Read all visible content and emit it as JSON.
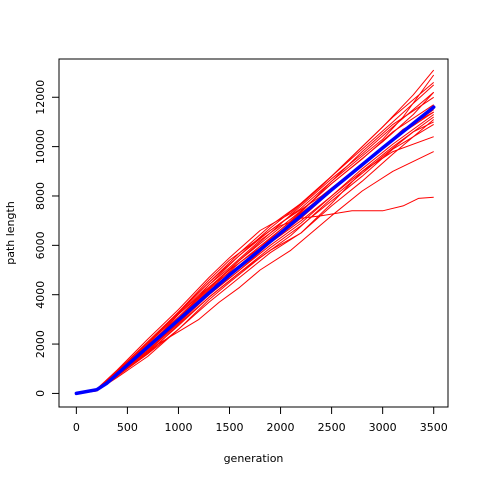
{
  "chart_data": {
    "type": "line",
    "title": "",
    "xlabel": "generation",
    "ylabel": "path length",
    "xlim": [
      -170,
      3640
    ],
    "ylim": [
      -550,
      13550
    ],
    "xticks": [
      0,
      500,
      1000,
      1500,
      2000,
      2500,
      3000,
      3500
    ],
    "yticks": [
      0,
      2000,
      4000,
      6000,
      8000,
      10000,
      12000
    ],
    "grid": false,
    "legend": "none",
    "colors": {
      "runs": "#ff0000",
      "mean": "#0000ff",
      "axes": "#000000"
    },
    "series": [
      {
        "values": [
          [
            0,
            0
          ],
          [
            200,
            140
          ],
          [
            400,
            750
          ],
          [
            700,
            1700
          ],
          [
            1000,
            2900
          ],
          [
            1300,
            4050
          ],
          [
            1400,
            4600
          ],
          [
            1600,
            5200
          ],
          [
            2000,
            6500
          ],
          [
            2500,
            8600
          ],
          [
            3000,
            10300
          ],
          [
            3200,
            11200
          ],
          [
            3500,
            12900
          ]
        ]
      },
      {
        "values": [
          [
            0,
            0
          ],
          [
            200,
            160
          ],
          [
            400,
            900
          ],
          [
            800,
            2300
          ],
          [
            1000,
            3200
          ],
          [
            1300,
            4300
          ],
          [
            1500,
            5000
          ],
          [
            1800,
            5900
          ],
          [
            2100,
            7000
          ],
          [
            2500,
            8500
          ],
          [
            3000,
            10200
          ],
          [
            3300,
            11300
          ],
          [
            3500,
            12200
          ]
        ]
      },
      {
        "values": [
          [
            0,
            0
          ],
          [
            200,
            100
          ],
          [
            400,
            700
          ],
          [
            700,
            1600
          ],
          [
            1000,
            2600
          ],
          [
            1300,
            3800
          ],
          [
            1500,
            4500
          ],
          [
            1800,
            5500
          ],
          [
            2100,
            6400
          ],
          [
            2500,
            7900
          ],
          [
            3000,
            9600
          ],
          [
            3300,
            10600
          ],
          [
            3500,
            11000
          ]
        ]
      },
      {
        "values": [
          [
            0,
            0
          ],
          [
            200,
            130
          ],
          [
            500,
            1100
          ],
          [
            800,
            2000
          ],
          [
            1000,
            2500
          ],
          [
            1200,
            3000
          ],
          [
            1400,
            3700
          ],
          [
            1600,
            4300
          ],
          [
            1800,
            5000
          ],
          [
            2100,
            5800
          ],
          [
            2500,
            7200
          ],
          [
            2800,
            8200
          ],
          [
            3100,
            9000
          ],
          [
            3500,
            9800
          ]
        ]
      },
      {
        "values": [
          [
            0,
            0
          ],
          [
            200,
            150
          ],
          [
            400,
            800
          ],
          [
            700,
            1800
          ],
          [
            1000,
            3000
          ],
          [
            1300,
            4400
          ],
          [
            1500,
            5100
          ],
          [
            1800,
            6200
          ],
          [
            2000,
            6800
          ],
          [
            2200,
            7100
          ],
          [
            2400,
            7200
          ],
          [
            2700,
            7400
          ],
          [
            3000,
            7400
          ],
          [
            3200,
            7600
          ],
          [
            3350,
            7900
          ],
          [
            3500,
            7950
          ]
        ]
      },
      {
        "values": [
          [
            0,
            0
          ],
          [
            200,
            160
          ],
          [
            400,
            850
          ],
          [
            700,
            2000
          ],
          [
            1000,
            3300
          ],
          [
            1300,
            4600
          ],
          [
            1500,
            5400
          ],
          [
            1800,
            6300
          ],
          [
            2000,
            6900
          ],
          [
            2400,
            8000
          ],
          [
            2800,
            9300
          ],
          [
            3100,
            10300
          ],
          [
            3500,
            11600
          ]
        ]
      },
      {
        "values": [
          [
            0,
            0
          ],
          [
            200,
            120
          ],
          [
            400,
            700
          ],
          [
            700,
            1600
          ],
          [
            1000,
            2800
          ],
          [
            1300,
            3900
          ],
          [
            1600,
            4900
          ],
          [
            1900,
            5800
          ],
          [
            2200,
            6500
          ],
          [
            2500,
            7700
          ],
          [
            2800,
            9000
          ],
          [
            3100,
            9800
          ],
          [
            3500,
            10400
          ]
        ]
      },
      {
        "values": [
          [
            0,
            0
          ],
          [
            200,
            180
          ],
          [
            400,
            950
          ],
          [
            700,
            2200
          ],
          [
            1000,
            3400
          ],
          [
            1300,
            4700
          ],
          [
            1500,
            5500
          ],
          [
            1800,
            6600
          ],
          [
            2100,
            7300
          ],
          [
            2400,
            8400
          ],
          [
            2700,
            9600
          ],
          [
            3000,
            10800
          ],
          [
            3300,
            12100
          ],
          [
            3500,
            13100
          ]
        ]
      },
      {
        "values": [
          [
            0,
            0
          ],
          [
            200,
            150
          ],
          [
            400,
            800
          ],
          [
            700,
            1900
          ],
          [
            1000,
            3000
          ],
          [
            1300,
            4200
          ],
          [
            1600,
            5300
          ],
          [
            1900,
            6300
          ],
          [
            2200,
            7300
          ],
          [
            2500,
            8300
          ],
          [
            2800,
            9300
          ],
          [
            3100,
            10300
          ],
          [
            3500,
            11500
          ]
        ]
      },
      {
        "values": [
          [
            0,
            0
          ],
          [
            200,
            140
          ],
          [
            400,
            780
          ],
          [
            700,
            1850
          ],
          [
            1000,
            2950
          ],
          [
            1300,
            4100
          ],
          [
            1600,
            5100
          ],
          [
            1900,
            6100
          ],
          [
            2200,
            7100
          ],
          [
            2500,
            8200
          ],
          [
            2800,
            9200
          ],
          [
            3200,
            10700
          ],
          [
            3500,
            11400
          ]
        ]
      },
      {
        "values": [
          [
            0,
            0
          ],
          [
            200,
            170
          ],
          [
            400,
            880
          ],
          [
            700,
            2000
          ],
          [
            1000,
            3200
          ],
          [
            1300,
            4400
          ],
          [
            1600,
            5600
          ],
          [
            1900,
            6600
          ],
          [
            2200,
            7500
          ],
          [
            2500,
            8600
          ],
          [
            2800,
            9800
          ],
          [
            3100,
            10900
          ],
          [
            3500,
            12000
          ]
        ]
      },
      {
        "values": [
          [
            0,
            0
          ],
          [
            200,
            100
          ],
          [
            400,
            650
          ],
          [
            700,
            1500
          ],
          [
            1000,
            2600
          ],
          [
            1300,
            3700
          ],
          [
            1600,
            4700
          ],
          [
            1900,
            5700
          ],
          [
            2200,
            6500
          ],
          [
            2500,
            7600
          ],
          [
            2800,
            8600
          ],
          [
            3100,
            9700
          ],
          [
            3500,
            11100
          ]
        ]
      },
      {
        "values": [
          [
            0,
            0
          ],
          [
            200,
            130
          ],
          [
            400,
            760
          ],
          [
            700,
            1750
          ],
          [
            1000,
            2900
          ],
          [
            1300,
            4000
          ],
          [
            1600,
            5000
          ],
          [
            1900,
            6000
          ],
          [
            2200,
            6900
          ],
          [
            2500,
            8000
          ],
          [
            2800,
            9000
          ],
          [
            3100,
            10000
          ],
          [
            3500,
            11200
          ]
        ]
      },
      {
        "values": [
          [
            0,
            0
          ],
          [
            200,
            170
          ],
          [
            400,
            900
          ],
          [
            700,
            2100
          ],
          [
            1000,
            3300
          ],
          [
            1300,
            4500
          ],
          [
            1600,
            5700
          ],
          [
            1900,
            6800
          ],
          [
            2200,
            7700
          ],
          [
            2500,
            8800
          ],
          [
            2800,
            9900
          ],
          [
            3100,
            11000
          ],
          [
            3500,
            12500
          ]
        ]
      },
      {
        "values": [
          [
            0,
            0
          ],
          [
            200,
            110
          ],
          [
            400,
            700
          ],
          [
            700,
            1650
          ],
          [
            1000,
            2750
          ],
          [
            1300,
            3900
          ],
          [
            1600,
            4900
          ],
          [
            1900,
            5900
          ],
          [
            2200,
            6800
          ],
          [
            2500,
            7800
          ],
          [
            2800,
            8800
          ],
          [
            3100,
            9900
          ],
          [
            3500,
            10900
          ]
        ]
      },
      {
        "values": [
          [
            0,
            0
          ],
          [
            200,
            150
          ],
          [
            400,
            820
          ],
          [
            700,
            1900
          ],
          [
            1000,
            3050
          ],
          [
            1300,
            4250
          ],
          [
            1600,
            5400
          ],
          [
            1900,
            6500
          ],
          [
            2200,
            7600
          ],
          [
            2500,
            8700
          ],
          [
            2800,
            9700
          ],
          [
            3100,
            10800
          ],
          [
            3500,
            12200
          ]
        ]
      },
      {
        "values": [
          [
            0,
            0
          ],
          [
            200,
            160
          ],
          [
            400,
            860
          ],
          [
            700,
            1950
          ],
          [
            1000,
            3100
          ],
          [
            1300,
            4300
          ],
          [
            1600,
            5400
          ],
          [
            1900,
            6400
          ],
          [
            2200,
            7400
          ],
          [
            2500,
            8500
          ],
          [
            2800,
            9500
          ],
          [
            3100,
            10600
          ],
          [
            3500,
            11700
          ]
        ]
      },
      {
        "values": [
          [
            0,
            0
          ],
          [
            200,
            120
          ],
          [
            400,
            740
          ],
          [
            700,
            1700
          ],
          [
            1000,
            2850
          ],
          [
            1300,
            4000
          ],
          [
            1600,
            5000
          ],
          [
            1900,
            6100
          ],
          [
            2200,
            7000
          ],
          [
            2500,
            8000
          ],
          [
            2800,
            9100
          ],
          [
            3100,
            10100
          ],
          [
            3500,
            11300
          ]
        ]
      },
      {
        "values": [
          [
            0,
            0
          ],
          [
            200,
            180
          ],
          [
            400,
            920
          ],
          [
            700,
            2050
          ],
          [
            1000,
            3250
          ],
          [
            1300,
            4500
          ],
          [
            1600,
            5600
          ],
          [
            1900,
            6700
          ],
          [
            2200,
            7700
          ],
          [
            2500,
            8800
          ],
          [
            2800,
            10000
          ],
          [
            3100,
            11200
          ],
          [
            3500,
            12600
          ]
        ]
      },
      {
        "values": [
          [
            0,
            0
          ],
          [
            200,
            140
          ],
          [
            400,
            800
          ],
          [
            700,
            1850
          ],
          [
            1000,
            3000
          ],
          [
            1300,
            4150
          ],
          [
            1600,
            5200
          ],
          [
            1900,
            6200
          ],
          [
            2200,
            7200
          ],
          [
            2500,
            8300
          ],
          [
            2800,
            9300
          ],
          [
            3100,
            10300
          ],
          [
            3500,
            11400
          ]
        ]
      }
    ],
    "mean": {
      "values": [
        [
          0,
          0
        ],
        [
          200,
          150
        ],
        [
          300,
          420
        ],
        [
          500,
          1150
        ],
        [
          1000,
          2980
        ],
        [
          1500,
          4800
        ],
        [
          2000,
          6500
        ],
        [
          2500,
          8250
        ],
        [
          3000,
          9950
        ],
        [
          3500,
          11600
        ]
      ]
    }
  }
}
